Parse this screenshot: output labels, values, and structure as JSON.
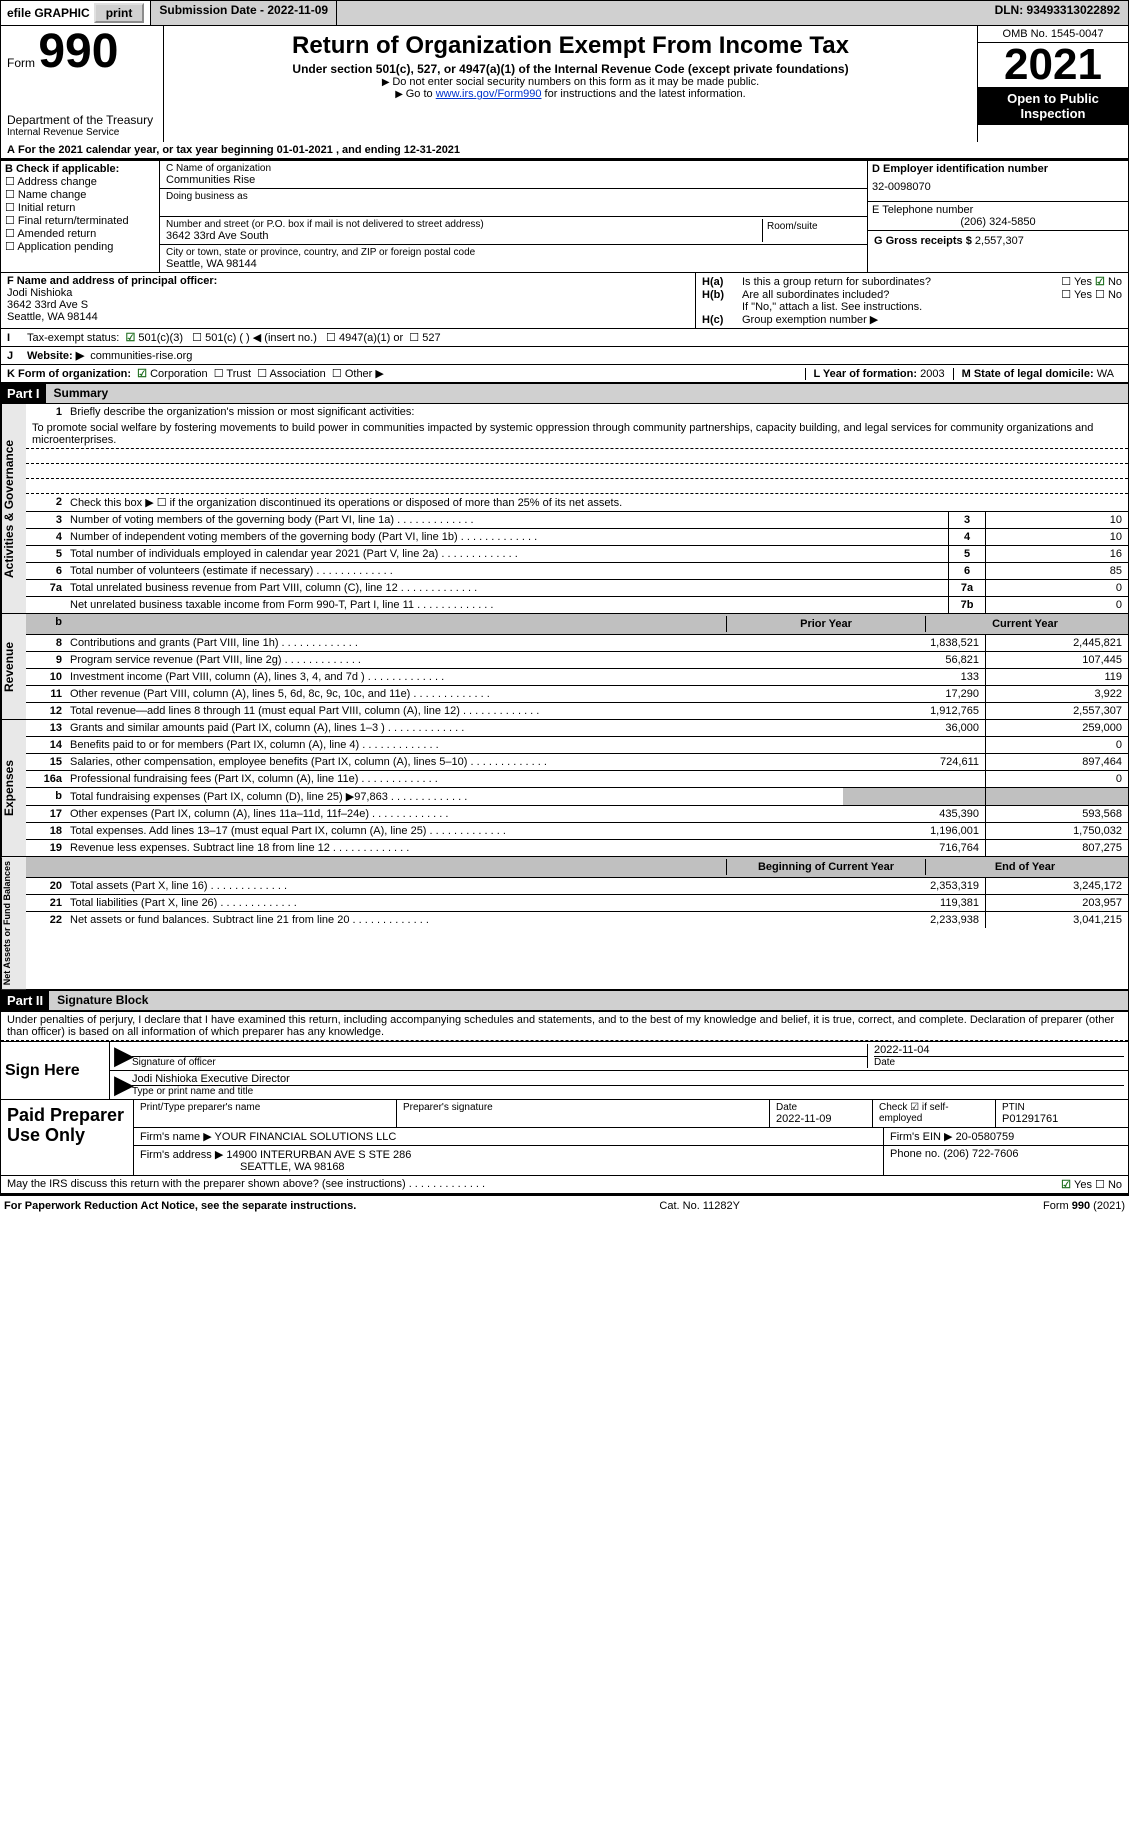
{
  "topbar": {
    "efile": "efile GRAPHIC",
    "print": "print",
    "submission": "Submission Date - 2022-11-09",
    "dln": "DLN: 93493313022892"
  },
  "header": {
    "formLabel": "Form",
    "formNumber": "990",
    "dept": "Department of the Treasury",
    "irs": "Internal Revenue Service",
    "title": "Return of Organization Exempt From Income Tax",
    "sub": "Under section 501(c), 527, or 4947(a)(1) of the Internal Revenue Code (except private foundations)",
    "note1": "Do not enter social security numbers on this form as it may be made public.",
    "note2_pre": "Go to ",
    "note2_link": "www.irs.gov/Form990",
    "note2_post": " for instructions and the latest information.",
    "omb": "OMB No. 1545-0047",
    "year": "2021",
    "open": "Open to Public Inspection"
  },
  "lineA": "For the 2021 calendar year, or tax year beginning 01-01-2021   , and ending 12-31-2021",
  "boxB": {
    "title": "B Check if applicable:",
    "opts": [
      "Address change",
      "Name change",
      "Initial return",
      "Final return/terminated",
      "Amended return",
      "Application pending"
    ]
  },
  "boxC": {
    "label": "C Name of organization",
    "name": "Communities Rise",
    "dba": "Doing business as",
    "addrLabel": "Number and street (or P.O. box if mail is not delivered to street address)",
    "room": "Room/suite",
    "addr": "3642 33rd Ave South",
    "cityLabel": "City or town, state or province, country, and ZIP or foreign postal code",
    "city": "Seattle, WA  98144"
  },
  "boxD": {
    "label": "D Employer identification number",
    "val": "32-0098070"
  },
  "boxE": {
    "label": "E Telephone number",
    "val": "(206) 324-5850"
  },
  "boxG": {
    "label": "G Gross receipts $",
    "val": "2,557,307"
  },
  "boxF": {
    "label": "F Name and address of principal officer:",
    "name": "Jodi Nishioka",
    "addr1": "3642 33rd Ave S",
    "addr2": "Seattle, WA  98144"
  },
  "boxH": {
    "a": "Is this a group return for subordinates?",
    "b": "Are all subordinates included?",
    "bnote": "If \"No,\" attach a list. See instructions.",
    "c": "Group exemption number ▶"
  },
  "boxI": {
    "label": "Tax-exempt status:",
    "o1": "501(c)(3)",
    "o2": "501(c) (  ) ◀ (insert no.)",
    "o3": "4947(a)(1) or",
    "o4": "527"
  },
  "boxJ": {
    "label": "Website: ▶",
    "val": "communities-rise.org"
  },
  "boxK": {
    "label": "K Form of organization:",
    "o1": "Corporation",
    "o2": "Trust",
    "o3": "Association",
    "o4": "Other ▶"
  },
  "boxL": {
    "label": "L Year of formation:",
    "val": "2003"
  },
  "boxM": {
    "label": "M State of legal domicile:",
    "val": "WA"
  },
  "part1": {
    "label": "Part I",
    "title": "Summary"
  },
  "summary": {
    "q1": "Briefly describe the organization's mission or most significant activities:",
    "mission": "To promote social welfare by fostering movements to build power in communities impacted by systemic oppression through community partnerships, capacity building, and legal services for community organizations and microenterprises.",
    "q2": "Check this box ▶ ☐  if the organization discontinued its operations or disposed of more than 25% of its net assets.",
    "rows1": [
      {
        "n": "3",
        "d": "Number of voting members of the governing body (Part VI, line 1a)",
        "b": "3",
        "v": "10"
      },
      {
        "n": "4",
        "d": "Number of independent voting members of the governing body (Part VI, line 1b)",
        "b": "4",
        "v": "10"
      },
      {
        "n": "5",
        "d": "Total number of individuals employed in calendar year 2021 (Part V, line 2a)",
        "b": "5",
        "v": "16"
      },
      {
        "n": "6",
        "d": "Total number of volunteers (estimate if necessary)",
        "b": "6",
        "v": "85"
      },
      {
        "n": "7a",
        "d": "Total unrelated business revenue from Part VIII, column (C), line 12",
        "b": "7a",
        "v": "0"
      },
      {
        "n": "",
        "d": "Net unrelated business taxable income from Form 990-T, Part I, line 11",
        "b": "7b",
        "v": "0"
      }
    ],
    "priorHeader": "Prior Year",
    "currentHeader": "Current Year",
    "revenue": [
      {
        "n": "8",
        "d": "Contributions and grants (Part VIII, line 1h)",
        "p": "1,838,521",
        "c": "2,445,821"
      },
      {
        "n": "9",
        "d": "Program service revenue (Part VIII, line 2g)",
        "p": "56,821",
        "c": "107,445"
      },
      {
        "n": "10",
        "d": "Investment income (Part VIII, column (A), lines 3, 4, and 7d )",
        "p": "133",
        "c": "119"
      },
      {
        "n": "11",
        "d": "Other revenue (Part VIII, column (A), lines 5, 6d, 8c, 9c, 10c, and 11e)",
        "p": "17,290",
        "c": "3,922"
      },
      {
        "n": "12",
        "d": "Total revenue—add lines 8 through 11 (must equal Part VIII, column (A), line 12)",
        "p": "1,912,765",
        "c": "2,557,307"
      }
    ],
    "expenses": [
      {
        "n": "13",
        "d": "Grants and similar amounts paid (Part IX, column (A), lines 1–3 )",
        "p": "36,000",
        "c": "259,000"
      },
      {
        "n": "14",
        "d": "Benefits paid to or for members (Part IX, column (A), line 4)",
        "p": "",
        "c": "0"
      },
      {
        "n": "15",
        "d": "Salaries, other compensation, employee benefits (Part IX, column (A), lines 5–10)",
        "p": "724,611",
        "c": "897,464"
      },
      {
        "n": "16a",
        "d": "Professional fundraising fees (Part IX, column (A), line 11e)",
        "p": "",
        "c": "0"
      },
      {
        "n": "b",
        "d": "Total fundraising expenses (Part IX, column (D), line 25) ▶97,863",
        "p": "grey",
        "c": "grey"
      },
      {
        "n": "17",
        "d": "Other expenses (Part IX, column (A), lines 11a–11d, 11f–24e)",
        "p": "435,390",
        "c": "593,568"
      },
      {
        "n": "18",
        "d": "Total expenses. Add lines 13–17 (must equal Part IX, column (A), line 25)",
        "p": "1,196,001",
        "c": "1,750,032"
      },
      {
        "n": "19",
        "d": "Revenue less expenses. Subtract line 18 from line 12",
        "p": "716,764",
        "c": "807,275"
      }
    ],
    "netHeader1": "Beginning of Current Year",
    "netHeader2": "End of Year",
    "net": [
      {
        "n": "20",
        "d": "Total assets (Part X, line 16)",
        "p": "2,353,319",
        "c": "3,245,172"
      },
      {
        "n": "21",
        "d": "Total liabilities (Part X, line 26)",
        "p": "119,381",
        "c": "203,957"
      },
      {
        "n": "22",
        "d": "Net assets or fund balances. Subtract line 21 from line 20",
        "p": "2,233,938",
        "c": "3,041,215"
      }
    ]
  },
  "sideLabels": {
    "gov": "Activities & Governance",
    "rev": "Revenue",
    "exp": "Expenses",
    "net": "Net Assets or Fund Balances"
  },
  "part2": {
    "label": "Part II",
    "title": "Signature Block"
  },
  "sig": {
    "penalty": "Under penalties of perjury, I declare that I have examined this return, including accompanying schedules and statements, and to the best of my knowledge and belief, it is true, correct, and complete. Declaration of preparer (other than officer) is based on all information of which preparer has any knowledge.",
    "signHere": "Sign Here",
    "sigOfficer": "Signature of officer",
    "date": "Date",
    "dateVal": "2022-11-04",
    "nameTitle": "Jodi Nishioka  Executive Director",
    "nameTitleLabel": "Type or print name and title"
  },
  "prep": {
    "label": "Paid Preparer Use Only",
    "r1": {
      "c1": "Print/Type preparer's name",
      "c2": "Preparer's signature",
      "c3": "Date",
      "c3v": "2022-11-09",
      "c4": "Check ☑ if self-employed",
      "c5": "PTIN",
      "c5v": "P01291761"
    },
    "r2": {
      "c1": "Firm's name    ▶",
      "c1v": "YOUR FINANCIAL SOLUTIONS LLC",
      "c2": "Firm's EIN ▶",
      "c2v": "20-0580759"
    },
    "r3": {
      "c1": "Firm's address ▶",
      "c1v": "14900 INTERURBAN AVE S STE 286",
      "c1v2": "SEATTLE, WA  98168",
      "c2": "Phone no.",
      "c2v": "(206) 722-7606"
    }
  },
  "discuss": "May the IRS discuss this return with the preparer shown above? (see instructions)",
  "footer": {
    "left": "For Paperwork Reduction Act Notice, see the separate instructions.",
    "mid": "Cat. No. 11282Y",
    "right": "Form 990 (2021)"
  }
}
